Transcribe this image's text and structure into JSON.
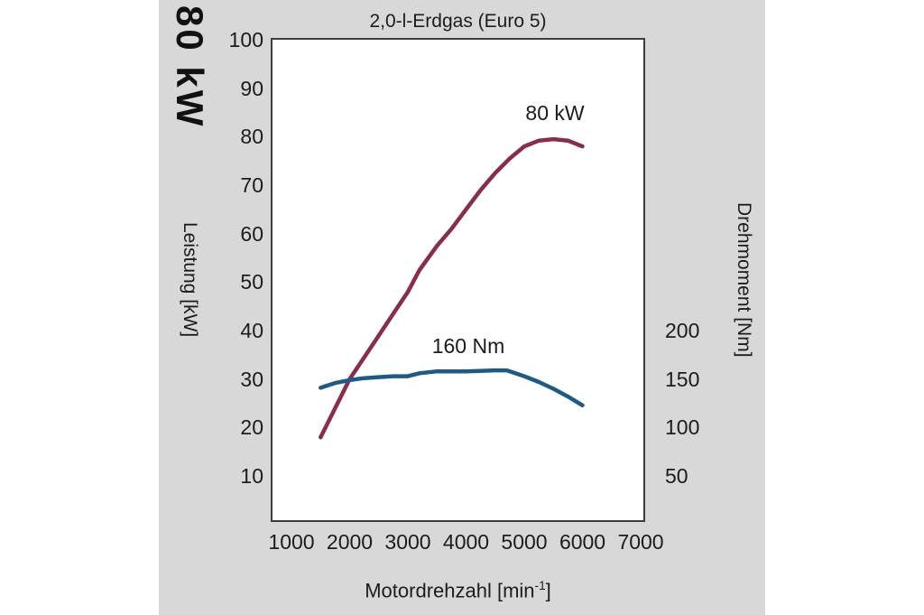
{
  "header": {
    "big_corner_label": "80 kW"
  },
  "chart_data": {
    "type": "line",
    "title": "2,0-l-Erdgas (Euro 5)",
    "x_axis": {
      "label_pre": "Motordrehzahl [min",
      "label_sup": "-1",
      "label_post": "]",
      "ticks": [
        1000,
        2000,
        3000,
        4000,
        5000,
        6000,
        7000
      ]
    },
    "left_axis": {
      "label": "Leistung [kW]",
      "unit": "kW",
      "ticks": [
        100,
        90,
        80,
        70,
        60,
        50,
        40,
        30,
        20,
        10
      ]
    },
    "right_axis": {
      "label": "Drehmoment [Nm]",
      "unit": "Nm",
      "ticks": [
        200,
        150,
        100,
        50
      ]
    },
    "x_range": [
      674,
      7046
    ],
    "kw_range": [
      0.9,
      100
    ],
    "nm_per_kw": 5,
    "grid": false,
    "legend": "inline-annotations",
    "series": [
      {
        "name": "power",
        "label": "80 kW",
        "unit": "kW",
        "color": "#8b2c4d",
        "x": [
          1500,
          1750,
          2000,
          2250,
          2500,
          2750,
          3000,
          3200,
          3500,
          3750,
          4000,
          4250,
          4500,
          4750,
          5000,
          5250,
          5500,
          5750,
          6000
        ],
        "y": [
          18,
          24,
          30,
          34.5,
          39,
          43.5,
          48,
          52.5,
          57.5,
          61,
          65,
          69,
          72.5,
          75.5,
          78,
          79.2,
          79.5,
          79.2,
          78
        ]
      },
      {
        "name": "torque",
        "label": "160 Nm",
        "unit": "Nm",
        "color": "#1c5a88",
        "x": [
          1500,
          1750,
          2000,
          2250,
          2500,
          2750,
          3000,
          3200,
          3500,
          4000,
          4500,
          4700,
          5000,
          5250,
          5500,
          5750,
          6000
        ],
        "y": [
          141,
          146,
          149,
          151,
          152,
          153,
          153,
          156,
          158,
          158,
          159,
          159,
          153,
          147,
          140,
          132,
          123
        ]
      }
    ],
    "annotations": [
      {
        "text": "80 kW",
        "series": "power"
      },
      {
        "text": "160 Nm",
        "series": "torque"
      }
    ]
  },
  "colors": {
    "panel_bg": "#d7d8d7",
    "plot_border": "#3d3d3d",
    "power_curve": "#8b2c4d",
    "torque_curve": "#1c5a88"
  }
}
